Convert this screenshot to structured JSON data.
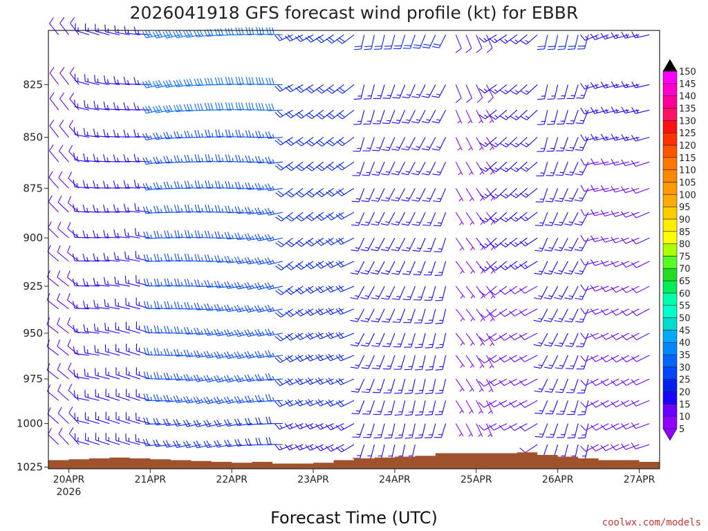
{
  "title": "2026041918 GFS forecast wind profile (kt) for EBBR",
  "credit": "coolwx.com/models",
  "chart_data": {
    "type": "wind_barb_profile",
    "title": "2026041918 GFS forecast wind profile (kt) for EBBR",
    "xlabel": "Forecast Time (UTC)",
    "ylabel": "",
    "x_ticks": [
      {
        "label": "20APR",
        "sub": "2026",
        "hour": 0
      },
      {
        "label": "21APR",
        "sub": "",
        "hour": 24
      },
      {
        "label": "22APR",
        "sub": "",
        "hour": 48
      },
      {
        "label": "23APR",
        "sub": "",
        "hour": 72
      },
      {
        "label": "24APR",
        "sub": "",
        "hour": 96
      },
      {
        "label": "25APR",
        "sub": "",
        "hour": 120
      },
      {
        "label": "26APR",
        "sub": "",
        "hour": 144
      },
      {
        "label": "27APR",
        "sub": "",
        "hour": 168
      }
    ],
    "xlim_hours": [
      -6,
      174
    ],
    "y_ticks": [
      825,
      850,
      875,
      900,
      925,
      950,
      975,
      1000,
      1025
    ],
    "ylim_hpa": [
      800,
      1026
    ],
    "y_scale": "log-pressure",
    "barb_levels_hpa": [
      802,
      825,
      837,
      850,
      862,
      875,
      887,
      900,
      912,
      925,
      937,
      950,
      962,
      975,
      987,
      1000,
      1012
    ],
    "barb_interval_hours": 3,
    "barb_hour_range": [
      -3,
      171
    ],
    "wind_segments": [
      {
        "from_hour": -6,
        "to_hour": 6,
        "direction_deg": 315,
        "speed_kt": 10
      },
      {
        "from_hour": 6,
        "to_hour": 27,
        "direction_deg": 280,
        "speed_kt": 15
      },
      {
        "from_hour": 27,
        "to_hour": 66,
        "direction_deg": 265,
        "speed_kt": 26
      },
      {
        "from_hour": 66,
        "to_hour": 87,
        "direction_deg": 240,
        "speed_kt": 20
      },
      {
        "from_hour": 87,
        "to_hour": 114,
        "direction_deg": 200,
        "speed_kt": 16
      },
      {
        "from_hour": 114,
        "to_hour": 126,
        "direction_deg": 150,
        "speed_kt": 7
      },
      {
        "from_hour": 126,
        "to_hour": 141,
        "direction_deg": 235,
        "speed_kt": 13
      },
      {
        "from_hour": 141,
        "to_hour": 156,
        "direction_deg": 200,
        "speed_kt": 16
      },
      {
        "from_hour": 156,
        "to_hour": 174,
        "direction_deg": 250,
        "speed_kt": 12
      }
    ],
    "surface_pressure": {
      "hours": [
        -6,
        0,
        6,
        12,
        18,
        24,
        30,
        36,
        42,
        48,
        54,
        60,
        66,
        72,
        78,
        84,
        90,
        96,
        102,
        108,
        114,
        120,
        126,
        132,
        138,
        144,
        150,
        156,
        162,
        168,
        174
      ],
      "hpa": [
        1021,
        1020.5,
        1020,
        1019.5,
        1020,
        1020.5,
        1021,
        1021.5,
        1022,
        1022.5,
        1022,
        1023,
        1023,
        1022.5,
        1021,
        1020,
        1019.5,
        1019,
        1018.5,
        1017,
        1017,
        1017,
        1017,
        1016.5,
        1018,
        1019,
        1020,
        1021,
        1021,
        1022,
        1022.5
      ],
      "color": "#a0522d"
    },
    "colorbar": {
      "ticks": [
        5,
        10,
        15,
        20,
        25,
        30,
        35,
        40,
        45,
        50,
        55,
        60,
        65,
        70,
        75,
        80,
        85,
        90,
        95,
        100,
        105,
        110,
        115,
        120,
        125,
        130,
        135,
        140,
        145,
        150
      ],
      "colors": [
        "#8f00ff",
        "#6a00ff",
        "#1a00ff",
        "#0022ee",
        "#0044ff",
        "#0066ff",
        "#0088ff",
        "#00aaff",
        "#00ddcc",
        "#00ffcc",
        "#00ffaa",
        "#00ee55",
        "#22dd22",
        "#55ff22",
        "#aaff00",
        "#ffff00",
        "#ffee00",
        "#ffcc00",
        "#ffaa00",
        "#ff9900",
        "#ff8800",
        "#ff7700",
        "#ff5500",
        "#ff3300",
        "#ff1111",
        "#ff1166",
        "#ff0099",
        "#ff00cc",
        "#ff00ff",
        "#000000"
      ]
    }
  }
}
